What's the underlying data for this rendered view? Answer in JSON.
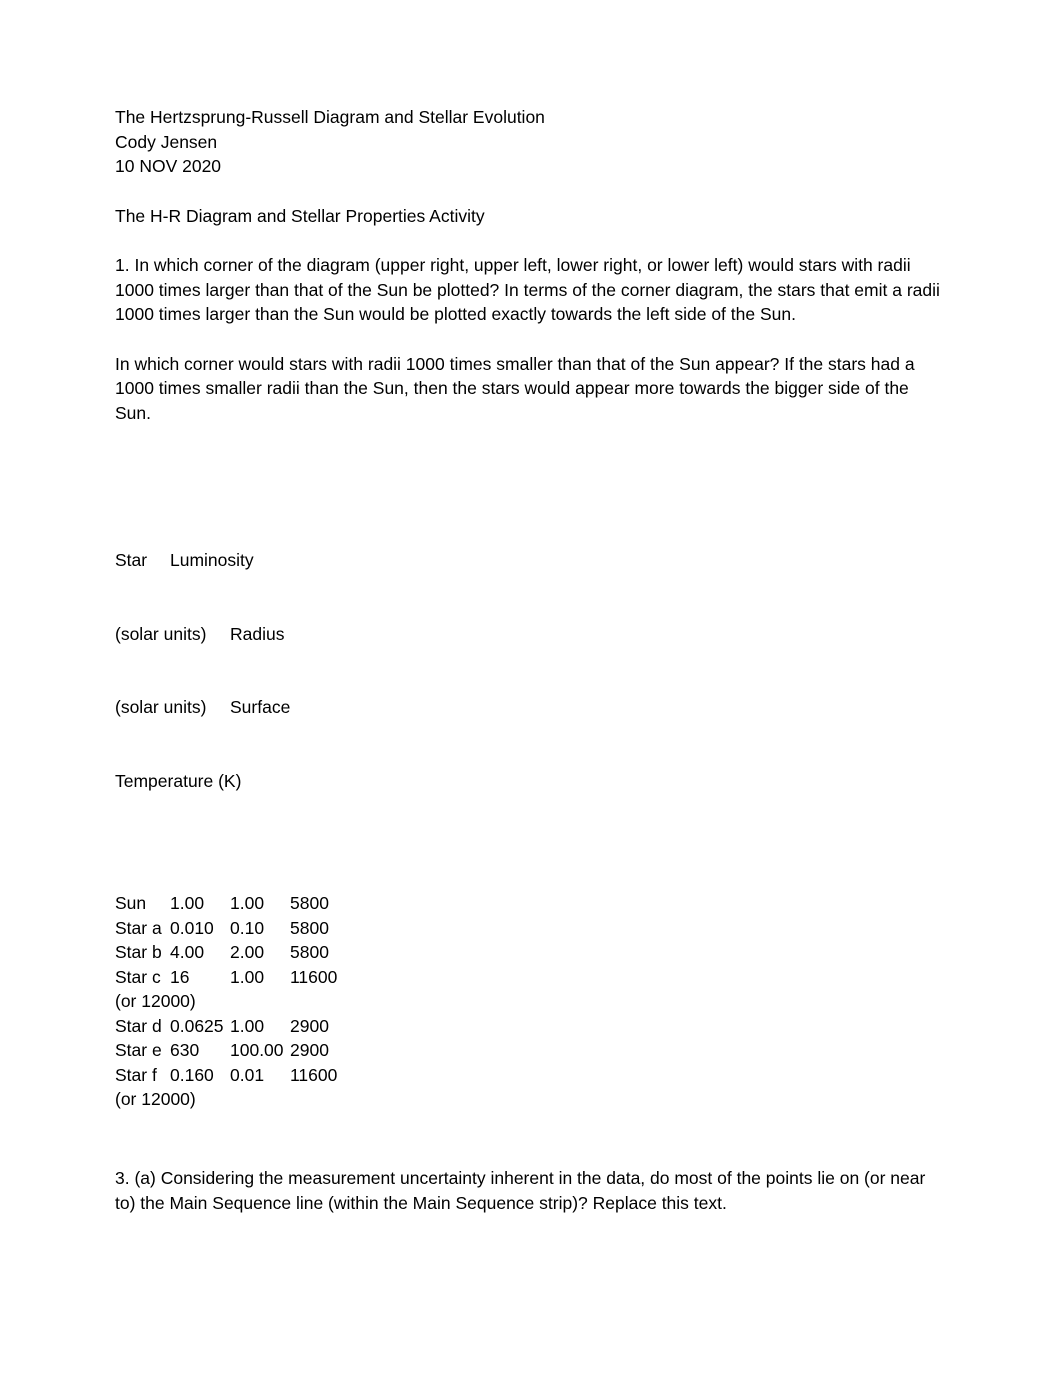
{
  "header": {
    "title": "The Hertzsprung-Russell Diagram and Stellar Evolution",
    "author": "Cody Jensen",
    "date": "10 NOV 2020"
  },
  "activity_title": "The H-R Diagram and Stellar Properties Activity",
  "q1_a": "1. In which corner of the diagram (upper right, upper left, lower right, or lower left) would stars with radii 1000 times larger than that of the Sun be plotted? In terms of the corner diagram, the stars that emit a radii 1000 times larger than the Sun would be plotted exactly towards the left side of the Sun.",
  "q1_b": "In which corner would stars with radii 1000 times smaller than that of the Sun appear? If the stars had a 1000 times smaller radii than the Sun, then the stars would appear more towards the bigger side of the Sun.",
  "table": {
    "header": {
      "line1_a": "Star",
      "line1_b": "Luminosity",
      "line2_a": "(solar units)",
      "line2_b": "Radius",
      "line3_a": "(solar units)",
      "line3_b": "Surface",
      "line4": "Temperature (K)"
    },
    "rows": [
      {
        "star": "Sun",
        "lum": "1.00",
        "rad": "1.00",
        "temp": "5800",
        "note": ""
      },
      {
        "star": "Star a",
        "lum": "0.010",
        "rad": "0.10",
        "temp": "5800",
        "note": ""
      },
      {
        "star": "Star b",
        "lum": "4.00",
        "rad": "2.00",
        "temp": "5800",
        "note": ""
      },
      {
        "star": "Star c",
        "lum": "16",
        "rad": "1.00",
        "temp": "11600",
        "note": "(or 12000)"
      },
      {
        "star": "Star d",
        "lum": "0.0625",
        "rad": "1.00",
        "temp": "2900",
        "note": ""
      },
      {
        "star": "Star e",
        "lum": "630",
        "rad": "100.00",
        "temp": "2900",
        "note": ""
      },
      {
        "star": "Star f",
        "lum": "0.160",
        "rad": "0.01",
        "temp": "11600",
        "note": "(or 12000)"
      }
    ]
  },
  "q3": "3. (a) Considering the measurement uncertainty inherent in the data, do most of the points lie on (or near to) the Main Sequence line (within the Main Sequence strip)? Replace this text."
}
